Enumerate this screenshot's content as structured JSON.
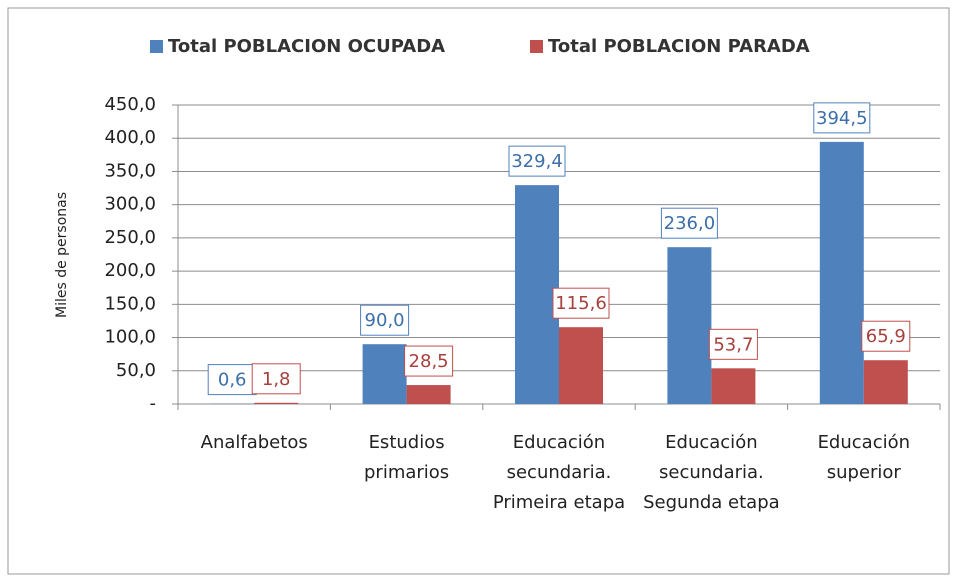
{
  "chart_data": {
    "type": "bar",
    "y_axis_label": "Miles de personas",
    "categories": [
      "Analfabetos",
      "Estudios primarios",
      "Educación secundaria. Primeira etapa",
      "Educación secundaria. Segunda etapa",
      "Educación superior"
    ],
    "series": [
      {
        "name": "Total POBLACION OCUPADA",
        "color": "#4f81bd",
        "values": [
          0.6,
          90.0,
          329.4,
          236.0,
          394.5
        ],
        "value_labels": [
          "0,6",
          "90,0",
          "329,4",
          "236,0",
          "394,5"
        ]
      },
      {
        "name": "Total POBLACION PARADA",
        "color": "#c0504d",
        "values": [
          1.8,
          28.5,
          115.6,
          53.7,
          65.9
        ],
        "value_labels": [
          "1,8",
          "28,5",
          "115,6",
          "53,7",
          "65,9"
        ]
      }
    ],
    "ylim": [
      0,
      450
    ],
    "yticks": [
      {
        "value": 0,
        "label": "-"
      },
      {
        "value": 50,
        "label": "50,0"
      },
      {
        "value": 100,
        "label": "100,0"
      },
      {
        "value": 150,
        "label": "150,0"
      },
      {
        "value": 200,
        "label": "200,0"
      },
      {
        "value": 250,
        "label": "250,0"
      },
      {
        "value": 300,
        "label": "300,0"
      },
      {
        "value": 350,
        "label": "350,0"
      },
      {
        "value": 400,
        "label": "400,0"
      },
      {
        "value": 450,
        "label": "450,0"
      }
    ],
    "grid": true,
    "legend": "top"
  }
}
